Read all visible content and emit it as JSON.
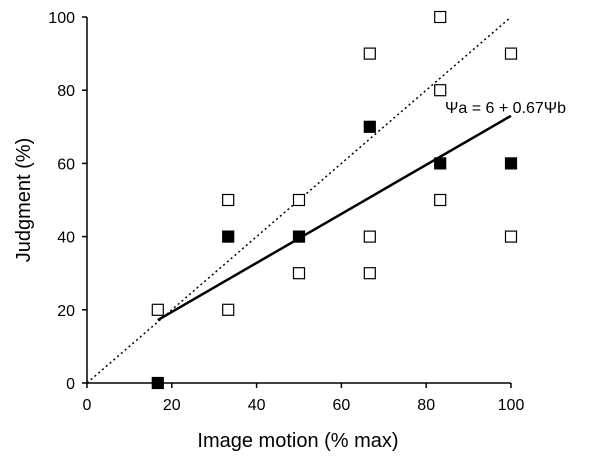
{
  "chart_data": {
    "type": "scatter",
    "title": "",
    "xlabel": "Image motion (% max)",
    "ylabel": "Judgment (%)",
    "xlim": [
      0,
      100
    ],
    "ylim": [
      0,
      100
    ],
    "xticks": [
      "0",
      "20",
      "40",
      "60",
      "80",
      "100"
    ],
    "yticks": [
      "0",
      "20",
      "40",
      "60",
      "80",
      "100"
    ],
    "grid": false,
    "legend": "none",
    "series": [
      {
        "marker": "open-square",
        "points": [
          {
            "x": 16.7,
            "y": 20
          },
          {
            "x": 33.3,
            "y": 50
          },
          {
            "x": 33.3,
            "y": 20
          },
          {
            "x": 50,
            "y": 50
          },
          {
            "x": 50,
            "y": 30
          },
          {
            "x": 66.7,
            "y": 90
          },
          {
            "x": 66.7,
            "y": 40
          },
          {
            "x": 66.7,
            "y": 30
          },
          {
            "x": 83.3,
            "y": 100
          },
          {
            "x": 83.3,
            "y": 80
          },
          {
            "x": 83.3,
            "y": 50
          },
          {
            "x": 100,
            "y": 90
          },
          {
            "x": 100,
            "y": 40
          }
        ]
      },
      {
        "marker": "filled-square",
        "points": [
          {
            "x": 16.7,
            "y": 0
          },
          {
            "x": 33.3,
            "y": 40
          },
          {
            "x": 50,
            "y": 40
          },
          {
            "x": 66.7,
            "y": 70
          },
          {
            "x": 83.3,
            "y": 60
          },
          {
            "x": 100,
            "y": 60
          }
        ]
      }
    ],
    "lines": [
      {
        "style": "solid",
        "from": [
          16.7,
          17.2
        ],
        "to": [
          100,
          73
        ]
      },
      {
        "style": "dotted",
        "from": [
          0,
          0
        ],
        "to": [
          100,
          100
        ]
      }
    ],
    "annotation": "Ψa = 6 + 0.67Ψb",
    "colors": {
      "marker": "#000000",
      "line": "#000000",
      "background": "#ffffff"
    }
  }
}
